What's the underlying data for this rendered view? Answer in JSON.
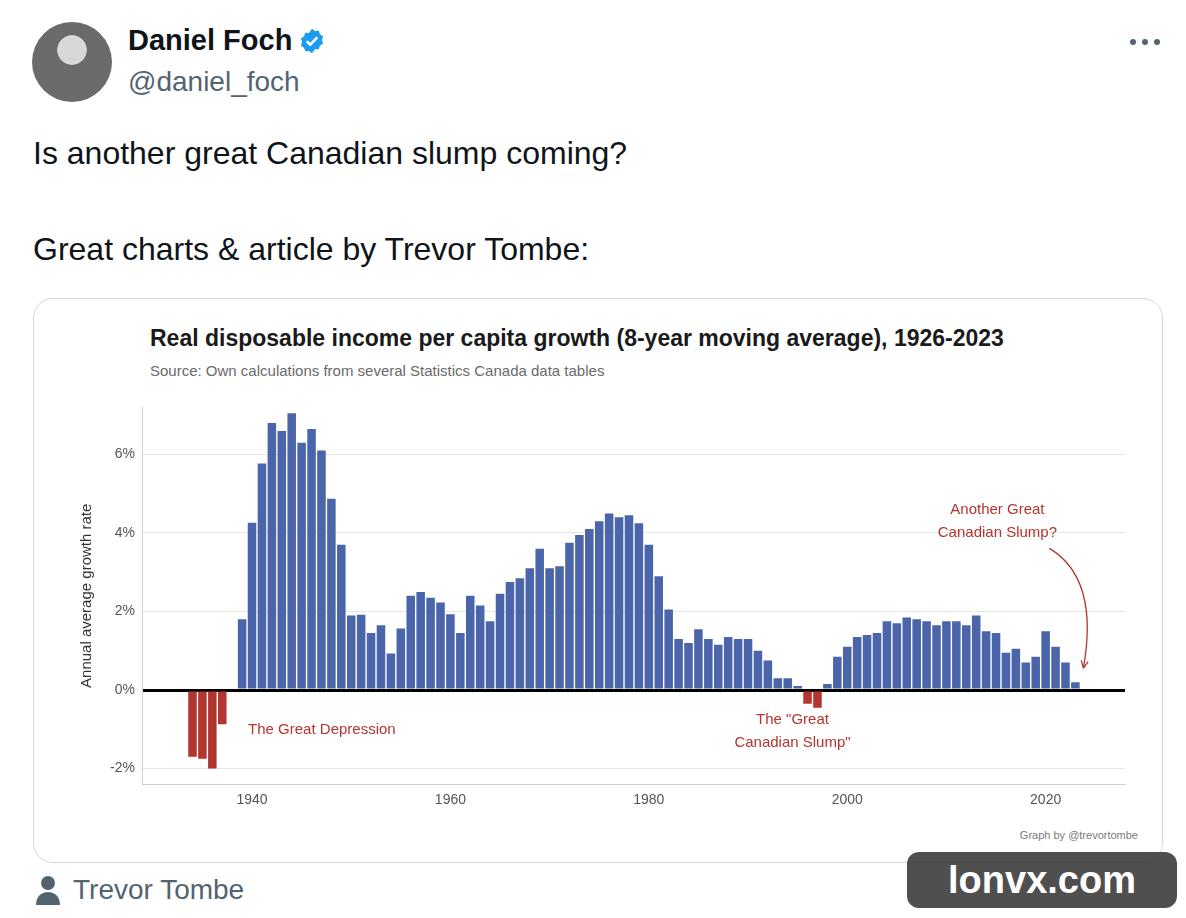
{
  "tweet": {
    "author": "Daniel Foch",
    "handle": "@daniel_foch",
    "text": [
      "Is another great Canadian slump coming?",
      "Great charts & article by Trevor Tombe:"
    ],
    "footer": "Trevor Tombe",
    "watermark": "lonvx.com"
  },
  "chart_data": {
    "type": "bar",
    "title": "Real disposable income per capita growth (8-year moving average), 1926-2023",
    "subtitle": "Source: Own calculations from several Statistics Canada data tables",
    "y_label": "Annual average growth rate",
    "caption": "Graph by @trevortombe",
    "annotations": [
      "The Great Depression",
      "The \"Great Canadian Slump\"",
      "Another Great Canadian Slump?"
    ],
    "x": [
      1934,
      1935,
      1936,
      1937,
      1938,
      1939,
      1940,
      1941,
      1942,
      1943,
      1944,
      1945,
      1946,
      1947,
      1948,
      1949,
      1950,
      1951,
      1952,
      1953,
      1954,
      1955,
      1956,
      1957,
      1958,
      1959,
      1960,
      1961,
      1962,
      1963,
      1964,
      1965,
      1966,
      1967,
      1968,
      1969,
      1970,
      1971,
      1972,
      1973,
      1974,
      1975,
      1976,
      1977,
      1978,
      1979,
      1980,
      1981,
      1982,
      1983,
      1984,
      1985,
      1986,
      1987,
      1988,
      1989,
      1990,
      1991,
      1992,
      1993,
      1994,
      1995,
      1996,
      1997,
      1998,
      1999,
      2000,
      2001,
      2002,
      2003,
      2004,
      2005,
      2006,
      2007,
      2008,
      2009,
      2010,
      2011,
      2012,
      2013,
      2014,
      2015,
      2016,
      2017,
      2018,
      2019,
      2020,
      2021,
      2022,
      2023
    ],
    "values": [
      -1.7,
      -1.75,
      -2.0,
      -0.87,
      0,
      1.8,
      4.26,
      5.77,
      6.8,
      6.6,
      7.05,
      6.3,
      6.65,
      6.1,
      4.87,
      3.7,
      1.9,
      1.92,
      1.45,
      1.65,
      0.93,
      1.57,
      2.4,
      2.5,
      2.35,
      2.23,
      1.93,
      1.45,
      2.4,
      2.15,
      1.75,
      2.45,
      2.75,
      2.85,
      3.1,
      3.6,
      3.1,
      3.15,
      3.75,
      3.95,
      4.1,
      4.3,
      4.5,
      4.4,
      4.45,
      4.25,
      3.7,
      2.9,
      2.05,
      1.3,
      1.2,
      1.55,
      1.3,
      1.15,
      1.35,
      1.3,
      1.3,
      1.0,
      0.75,
      0.3,
      0.3,
      0.1,
      -0.35,
      -0.45,
      0.15,
      0.85,
      1.1,
      1.35,
      1.4,
      1.45,
      1.75,
      1.7,
      1.85,
      1.8,
      1.75,
      1.65,
      1.75,
      1.75,
      1.65,
      1.9,
      1.5,
      1.45,
      0.95,
      1.05,
      0.7,
      0.85,
      1.5,
      1.1,
      0.7,
      0.2
    ],
    "colors": [
      "#b3352f",
      "#b3352f",
      "#b3352f",
      "#b3352f",
      "#4b65aa",
      "#4b65aa",
      "#4b65aa",
      "#4b65aa",
      "#4b65aa",
      "#4b65aa",
      "#4b65aa",
      "#4b65aa",
      "#4b65aa",
      "#4b65aa",
      "#4b65aa",
      "#4b65aa",
      "#4b65aa",
      "#4b65aa",
      "#4b65aa",
      "#4b65aa",
      "#4b65aa",
      "#4b65aa",
      "#4b65aa",
      "#4b65aa",
      "#4b65aa",
      "#4b65aa",
      "#4b65aa",
      "#4b65aa",
      "#4b65aa",
      "#4b65aa",
      "#4b65aa",
      "#4b65aa",
      "#4b65aa",
      "#4b65aa",
      "#4b65aa",
      "#4b65aa",
      "#4b65aa",
      "#4b65aa",
      "#4b65aa",
      "#4b65aa",
      "#4b65aa",
      "#4b65aa",
      "#4b65aa",
      "#4b65aa",
      "#4b65aa",
      "#4b65aa",
      "#4b65aa",
      "#4b65aa",
      "#4b65aa",
      "#4b65aa",
      "#4b65aa",
      "#4b65aa",
      "#4b65aa",
      "#4b65aa",
      "#4b65aa",
      "#4b65aa",
      "#4b65aa",
      "#4b65aa",
      "#4b65aa",
      "#4b65aa",
      "#4b65aa",
      "#4b65aa",
      "#b3352f",
      "#b3352f",
      "#4b65aa",
      "#4b65aa",
      "#4b65aa",
      "#4b65aa",
      "#4b65aa",
      "#4b65aa",
      "#4b65aa",
      "#4b65aa",
      "#4b65aa",
      "#4b65aa",
      "#4b65aa",
      "#4b65aa",
      "#4b65aa",
      "#4b65aa",
      "#4b65aa",
      "#4b65aa",
      "#4b65aa",
      "#4b65aa",
      "#4b65aa",
      "#4b65aa",
      "#4b65aa",
      "#4b65aa",
      "#4b65aa",
      "#4b65aa",
      "#4b65aa",
      "#4b65aa"
    ],
    "xlim": [
      1929,
      2028
    ],
    "xticks": [
      1940,
      1960,
      1980,
      2000,
      2020
    ],
    "ylim": [
      -2.4,
      7.2
    ],
    "yticks": [
      {
        "value": -2,
        "label": "-2%"
      },
      {
        "value": 0,
        "label": "0%"
      },
      {
        "value": 2,
        "label": "2%"
      },
      {
        "value": 4,
        "label": "4%"
      },
      {
        "value": 6,
        "label": "6%"
      }
    ],
    "grid": true
  }
}
